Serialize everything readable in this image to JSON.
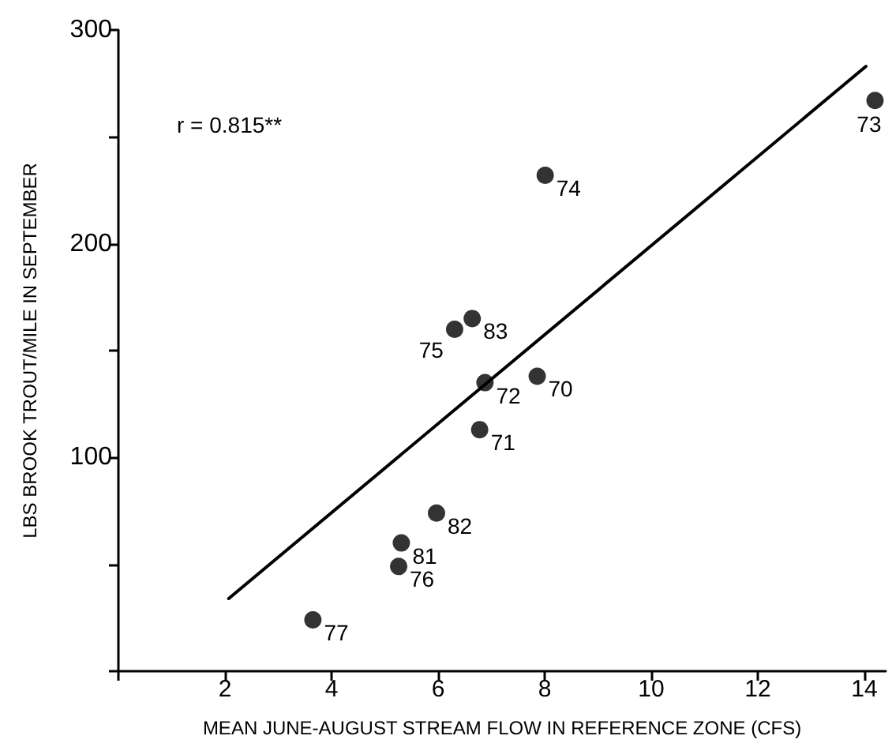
{
  "chart_data": {
    "type": "scatter",
    "xlabel": "MEAN JUNE-AUGUST STREAM FLOW IN REFERENCE ZONE (CFS)",
    "ylabel": "LBS BROOK TROUT/MILE IN SEPTEMBER",
    "annotations": [
      "r = 0.815**",
      {
        "text": "74",
        "x": 8.01,
        "y": 232
      },
      {
        "text": "83",
        "x": 6.64,
        "y": 165
      },
      {
        "text": "75",
        "x": 6.31,
        "y": 160
      },
      {
        "text": "72",
        "x": 6.88,
        "y": 135
      },
      {
        "text": "70",
        "x": 7.86,
        "y": 138
      },
      {
        "text": "71",
        "x": 6.78,
        "y": 113
      },
      {
        "text": "82",
        "x": 5.97,
        "y": 74
      },
      {
        "text": "81",
        "x": 5.31,
        "y": 60
      },
      {
        "text": "76",
        "x": 5.26,
        "y": 49
      },
      {
        "text": "77",
        "x": 3.65,
        "y": 24
      },
      {
        "text": "73",
        "x": 14.2,
        "y": 267
      }
    ],
    "series": [
      {
        "color": "#000000",
        "marker": "circle",
        "x": [
          8.01,
          6.64,
          6.31,
          6.88,
          7.86,
          6.78,
          5.97,
          5.31,
          5.26,
          3.65,
          14.2
        ],
        "values": [
          232,
          165,
          160,
          135,
          138,
          113,
          74,
          60,
          49,
          24,
          267
        ]
      },
      {
        "type": "line",
        "color": "#000000",
        "x": [
          2.07,
          14.03
        ],
        "values": [
          34,
          283
        ]
      }
    ],
    "xlim": [
      0,
      14.4
    ],
    "xticks": [
      {
        "value": 0,
        "label": null
      },
      2,
      4,
      6,
      8,
      10,
      12,
      14
    ],
    "ylim": [
      0,
      300
    ],
    "yticks": [
      {
        "value": 0,
        "label": null
      },
      {
        "value": 50,
        "label": null
      },
      100,
      {
        "value": 150,
        "label": null
      },
      200,
      {
        "value": 250,
        "label": null
      },
      300
    ],
    "grid": false
  }
}
